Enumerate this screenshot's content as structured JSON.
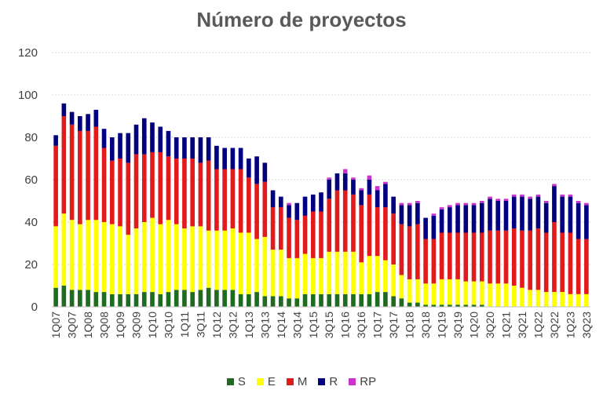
{
  "chart_data": {
    "type": "bar",
    "stacked": true,
    "title": "Número de proyectos",
    "xlabel": "",
    "ylabel": "",
    "ylim": [
      0,
      120
    ],
    "yticks": [
      0,
      20,
      40,
      60,
      80,
      100,
      120
    ],
    "grid": true,
    "legend_position": "bottom",
    "categories": [
      "1Q07",
      "2Q07",
      "3Q07",
      "4Q07",
      "1Q08",
      "2Q08",
      "3Q08",
      "4Q08",
      "1Q09",
      "2Q09",
      "3Q09",
      "4Q09",
      "1Q10",
      "2Q10",
      "3Q10",
      "4Q10",
      "1Q11",
      "2Q11",
      "3Q11",
      "4Q11",
      "1Q12",
      "2Q12",
      "3Q12",
      "4Q12",
      "1Q13",
      "2Q13",
      "3Q13",
      "4Q13",
      "1Q14",
      "2Q14",
      "3Q14",
      "4Q14",
      "1Q15",
      "2Q15",
      "3Q15",
      "4Q15",
      "1Q16",
      "2Q16",
      "3Q16",
      "4Q16",
      "1Q17",
      "2Q17",
      "3Q17",
      "4Q17",
      "1Q18",
      "2Q18",
      "3Q18",
      "4Q18",
      "1Q19",
      "2Q19",
      "3Q19",
      "4Q19",
      "1Q20",
      "2Q20",
      "3Q20",
      "4Q20",
      "1Q21",
      "2Q21",
      "3Q21",
      "4Q21",
      "1Q22",
      "2Q22",
      "3Q22",
      "4Q22",
      "1Q23",
      "2Q23",
      "3Q23"
    ],
    "tick_labels": [
      "1Q07",
      "3Q07",
      "1Q08",
      "3Q08",
      "1Q09",
      "3Q09",
      "1Q10",
      "3Q10",
      "1Q11",
      "3Q11",
      "1Q12",
      "3Q12",
      "1Q13",
      "3Q13",
      "1Q14",
      "3Q14",
      "1Q15",
      "3Q15",
      "1Q16",
      "3Q16",
      "1Q17",
      "3Q17",
      "1Q18",
      "3Q18",
      "1Q19",
      "3Q19",
      "1Q20",
      "3Q20",
      "1Q21",
      "3Q21",
      "1Q22",
      "3Q22",
      "1Q23",
      "3Q23"
    ],
    "series": [
      {
        "name": "S",
        "color": "#1f6b1f",
        "values": [
          9,
          10,
          8,
          8,
          8,
          7,
          7,
          6,
          6,
          6,
          6,
          7,
          7,
          6,
          7,
          8,
          8,
          7,
          8,
          9,
          8,
          8,
          8,
          6,
          6,
          7,
          5,
          5,
          5,
          4,
          4,
          6,
          6,
          6,
          6,
          6,
          6,
          6,
          6,
          6,
          7,
          7,
          5,
          4,
          2,
          2,
          1,
          1,
          1,
          1,
          1,
          1,
          1,
          1,
          0,
          0,
          0,
          0,
          0,
          0,
          0,
          0,
          0,
          0,
          0,
          0,
          0
        ]
      },
      {
        "name": "E",
        "color": "#ffff00",
        "values": [
          29,
          34,
          33,
          31,
          33,
          34,
          33,
          33,
          32,
          28,
          31,
          33,
          35,
          33,
          34,
          31,
          29,
          31,
          30,
          27,
          28,
          28,
          29,
          29,
          29,
          25,
          28,
          22,
          22,
          19,
          19,
          19,
          17,
          17,
          20,
          20,
          20,
          20,
          15,
          18,
          17,
          15,
          15,
          11,
          11,
          11,
          10,
          10,
          12,
          12,
          12,
          11,
          11,
          11,
          11,
          11,
          11,
          10,
          9,
          8,
          8,
          7,
          7,
          7,
          6,
          6,
          6
        ]
      },
      {
        "name": "M",
        "color": "#e31a1c",
        "values": [
          38,
          46,
          45,
          44,
          42,
          44,
          35,
          30,
          32,
          34,
          35,
          32,
          31,
          34,
          30,
          31,
          33,
          32,
          30,
          33,
          29,
          29,
          28,
          30,
          26,
          26,
          26,
          20,
          20,
          19,
          18,
          18,
          22,
          22,
          25,
          29,
          29,
          27,
          27,
          29,
          23,
          25,
          24,
          24,
          25,
          26,
          21,
          21,
          22,
          22,
          22,
          23,
          23,
          23,
          25,
          25,
          25,
          27,
          27,
          28,
          29,
          28,
          33,
          28,
          29,
          26,
          26
        ]
      },
      {
        "name": "R",
        "color": "#000080",
        "values": [
          5,
          6,
          6,
          7,
          8,
          8,
          9,
          11,
          12,
          14,
          14,
          17,
          14,
          12,
          12,
          10,
          10,
          10,
          12,
          11,
          11,
          10,
          10,
          10,
          9,
          13,
          9,
          8,
          5,
          6,
          8,
          9,
          8,
          9,
          9,
          8,
          8,
          7,
          7,
          7,
          8,
          11,
          8,
          9,
          10,
          10,
          10,
          11,
          11,
          12,
          13,
          13,
          13,
          14,
          15,
          14,
          14,
          15,
          16,
          15,
          15,
          14,
          17,
          17,
          17,
          17,
          16
        ]
      },
      {
        "name": "RP",
        "color": "#cc33cc",
        "values": [
          0,
          0,
          0,
          0,
          0,
          0,
          0,
          0,
          0,
          0,
          0,
          0,
          0,
          0,
          0,
          0,
          0,
          0,
          0,
          0,
          0,
          0,
          0,
          0,
          0,
          0,
          0,
          0,
          0,
          1,
          0,
          0,
          0,
          0,
          1,
          0,
          2,
          1,
          1,
          2,
          2,
          1,
          0,
          1,
          1,
          1,
          0,
          1,
          1,
          1,
          1,
          1,
          1,
          1,
          1,
          1,
          1,
          1,
          1,
          1,
          1,
          1,
          1,
          1,
          1,
          1,
          1
        ]
      }
    ]
  }
}
